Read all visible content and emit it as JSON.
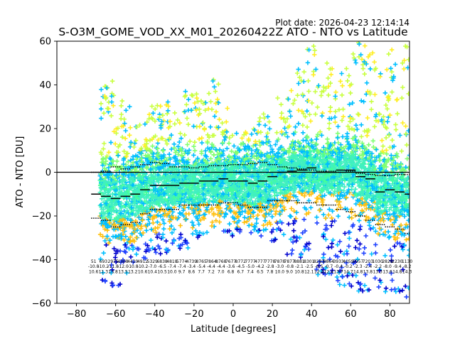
{
  "plot_date": "Plot date: 2026-04-23 12:14:14",
  "colors": {
    "cloud": [
      "#00bfff",
      "#40f0c0",
      "#44ff99",
      "#80ff70",
      "#c8ff40",
      "#ffee22",
      "#ffc010",
      "#2244ff",
      "#0000cc",
      "#88ff44"
    ],
    "zero_line": "#000000",
    "stat_marks": "#000000"
  },
  "chart_data": {
    "type": "scatter",
    "marker": "plus",
    "title": "S-O3M_GOME_VOD_XX_M01_20260422Z ATO - NTO vs Latitude",
    "xlabel": "Latitude [degrees]",
    "ylabel": "ATO - NTO [DU]",
    "xlim": [
      -90,
      90
    ],
    "ylim": [
      -60,
      60
    ],
    "xticks": [
      -80,
      -60,
      -40,
      -20,
      0,
      20,
      40,
      60,
      80
    ],
    "yticks": [
      -60,
      -40,
      -20,
      0,
      20,
      40,
      60
    ],
    "grid": false,
    "reference_line": 0,
    "band_width_deg": 5,
    "bands": [
      {
        "lat": -70,
        "mean": -10,
        "upper": 0.0,
        "lower": -21,
        "lo": -45,
        "hi": 15
      },
      {
        "lat": -65,
        "mean": -11,
        "upper": 0.5,
        "lower": -22,
        "lo": -50,
        "hi": 42
      },
      {
        "lat": -60,
        "mean": -12,
        "upper": 2.5,
        "lower": -25,
        "lo": -52,
        "hi": 44
      },
      {
        "lat": -55,
        "mean": -11,
        "upper": 1.5,
        "lower": -24,
        "lo": -50,
        "hi": 35
      },
      {
        "lat": -50,
        "mean": -10,
        "upper": 2.5,
        "lower": -23,
        "lo": -45,
        "hi": 28
      },
      {
        "lat": -45,
        "mean": -8,
        "upper": 3.5,
        "lower": -19,
        "lo": -42,
        "hi": 27
      },
      {
        "lat": -40,
        "mean": -6,
        "upper": 4.5,
        "lower": -17,
        "lo": -38,
        "hi": 33
      },
      {
        "lat": -35,
        "mean": -6,
        "upper": 4.0,
        "lower": -17,
        "lo": -38,
        "hi": 33
      },
      {
        "lat": -30,
        "mean": -6,
        "upper": 2.5,
        "lower": -17,
        "lo": -35,
        "hi": 30
      },
      {
        "lat": -25,
        "mean": -5,
        "upper": 2.5,
        "lower": -15,
        "lo": -35,
        "hi": 38
      },
      {
        "lat": -20,
        "mean": -5,
        "upper": 2.0,
        "lower": -15,
        "lo": -35,
        "hi": 36
      },
      {
        "lat": -15,
        "mean": -4,
        "upper": 2.5,
        "lower": -15,
        "lo": -30,
        "hi": 33
      },
      {
        "lat": -10,
        "mean": -4,
        "upper": 3.0,
        "lower": -15,
        "lo": -28,
        "hi": 45
      },
      {
        "lat": -5,
        "mean": -3,
        "upper": 3.0,
        "lower": -14,
        "lo": -28,
        "hi": 30
      },
      {
        "lat": 0,
        "mean": -4,
        "upper": 3.5,
        "lower": -14,
        "lo": -30,
        "hi": 18
      },
      {
        "lat": 5,
        "mean": -4,
        "upper": 3.5,
        "lower": -15,
        "lo": -28,
        "hi": 20
      },
      {
        "lat": 10,
        "mean": -5,
        "upper": 4.0,
        "lower": -16,
        "lo": -28,
        "hi": 22
      },
      {
        "lat": 15,
        "mean": -4,
        "upper": 4.5,
        "lower": -16,
        "lo": -30,
        "hi": 27
      },
      {
        "lat": 20,
        "mean": -2,
        "upper": 3.5,
        "lower": -13,
        "lo": -32,
        "hi": 26
      },
      {
        "lat": 25,
        "mean": 0,
        "upper": 2.5,
        "lower": -13,
        "lo": -30,
        "hi": 36
      },
      {
        "lat": 30,
        "mean": 0.5,
        "upper": 2.0,
        "lower": -13,
        "lo": -38,
        "hi": 38
      },
      {
        "lat": 35,
        "mean": 1,
        "upper": 1.5,
        "lower": -14,
        "lo": -40,
        "hi": 48
      },
      {
        "lat": 40,
        "mean": 2,
        "upper": 1.0,
        "lower": -14,
        "lo": -45,
        "hi": 58
      },
      {
        "lat": 45,
        "mean": 0,
        "upper": 0.5,
        "lower": -15,
        "lo": -48,
        "hi": 48
      },
      {
        "lat": 50,
        "mean": 0,
        "upper": 0.5,
        "lower": -15,
        "lo": -50,
        "hi": 52
      },
      {
        "lat": 55,
        "mean": 1,
        "upper": 0.0,
        "lower": -17,
        "lo": -52,
        "hi": 48
      },
      {
        "lat": 60,
        "mean": 1,
        "upper": 0.5,
        "lower": -18,
        "lo": -55,
        "hi": 56
      },
      {
        "lat": 65,
        "mean": -2,
        "upper": -0.5,
        "lower": -20,
        "lo": -55,
        "hi": 60
      },
      {
        "lat": 70,
        "mean": -3,
        "upper": -1.0,
        "lower": -22,
        "lo": -55,
        "hi": 55
      },
      {
        "lat": 75,
        "mean": -9,
        "upper": -1.5,
        "lower": -24,
        "lo": -55,
        "hi": 50
      },
      {
        "lat": 80,
        "mean": -8,
        "upper": -1.5,
        "lower": -25,
        "lo": -56,
        "hi": 57
      },
      {
        "lat": 85,
        "mean": -9,
        "upper": -1.0,
        "lower": -26,
        "lo": -58,
        "hi": 57
      },
      {
        "lat": 90,
        "mean": -10,
        "upper": -1.0,
        "lower": -28,
        "lo": -58,
        "hi": 58
      }
    ],
    "band_stats": [
      {
        "lat": -70,
        "count": "51",
        "mean": "-10.8",
        "std": "10.6"
      },
      {
        "lat": -65,
        "count": "693",
        "mean": "-10.2",
        "std": "11.3"
      },
      {
        "lat": -60,
        "count": "2975",
        "mean": "-11.8",
        "std": "13.8"
      },
      {
        "lat": -55,
        "count": "4308",
        "mean": "-12.0",
        "std": "13.5"
      },
      {
        "lat": -50,
        "count": "4429",
        "mean": "-10.8",
        "std": "13.2"
      },
      {
        "lat": -45,
        "count": "4912",
        "mean": "-10.2",
        "std": "10.6"
      },
      {
        "lat": -40,
        "count": "5329",
        "mean": "-7.0",
        "std": "10.4"
      },
      {
        "lat": -35,
        "count": "6838",
        "mean": "-6.5",
        "std": "10.5"
      },
      {
        "lat": -30,
        "count": "4818",
        "mean": "-7.4",
        "std": "10.0"
      },
      {
        "lat": -25,
        "count": "5774",
        "mean": "-7.4",
        "std": "9.7"
      },
      {
        "lat": -20,
        "count": "4739",
        "mean": "-3.4",
        "std": "8.6"
      },
      {
        "lat": -15,
        "count": "8765",
        "mean": "-5.4",
        "std": "7.7"
      },
      {
        "lat": -10,
        "count": "7864",
        "mean": "-4.4",
        "std": "7.2"
      },
      {
        "lat": -5,
        "count": "8768",
        "mean": "-4.4",
        "std": "7.0"
      },
      {
        "lat": 0,
        "count": "7677",
        "mean": "-3.6",
        "std": "6.8"
      },
      {
        "lat": 5,
        "count": "8772",
        "mean": "-4.5",
        "std": "6.7"
      },
      {
        "lat": 10,
        "count": "7777",
        "mean": "-5.0",
        "std": "7.4"
      },
      {
        "lat": 15,
        "count": "4777",
        "mean": "-4.2",
        "std": "6.5"
      },
      {
        "lat": 20,
        "count": "7778",
        "mean": "-2.8",
        "std": "7.8"
      },
      {
        "lat": 25,
        "count": "7878",
        "mean": "-3.0",
        "std": "10.0"
      },
      {
        "lat": 30,
        "count": "7877",
        "mean": "-0.8",
        "std": "9.0"
      },
      {
        "lat": 35,
        "count": "8881",
        "mean": "-2.1",
        "std": "10.8"
      },
      {
        "lat": 40,
        "count": "8301",
        "mean": "-2.5",
        "std": "12.1"
      },
      {
        "lat": 45,
        "count": "8283",
        "mean": "-0.5",
        "std": "12.4"
      },
      {
        "lat": 50,
        "count": "8864",
        "mean": "-0.7",
        "std": "12.4"
      },
      {
        "lat": 55,
        "count": "3933",
        "mean": "-0.4",
        "std": "13.7"
      },
      {
        "lat": 60,
        "count": "4059",
        "mean": "-0.2",
        "std": "14.7"
      },
      {
        "lat": 65,
        "count": "5957",
        "mean": "-2.3",
        "std": "14.8"
      },
      {
        "lat": 70,
        "count": "7203",
        "mean": "-2.4",
        "std": "13.8"
      },
      {
        "lat": 75,
        "count": "1030",
        "mean": "-2.2",
        "std": "13.3"
      },
      {
        "lat": 80,
        "count": "2828",
        "mean": "-8.0",
        "std": "13.6"
      },
      {
        "lat": 85,
        "count": "2230",
        "mean": "-9.4",
        "std": "14.8"
      },
      {
        "lat": 90,
        "count": "1130",
        "mean": "-8.2",
        "std": "14.3"
      }
    ]
  }
}
